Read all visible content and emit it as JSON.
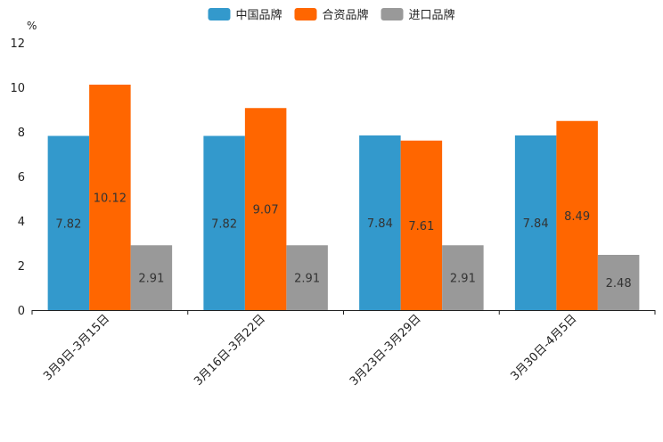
{
  "chart_data": {
    "type": "bar",
    "unit_label": "%",
    "categories": [
      "3月9日-3月15日",
      "3月16日-3月22日",
      "3月23日-3月29日",
      "3月30日-4月5日"
    ],
    "series": [
      {
        "name": "中国品牌",
        "color": "#3399cc",
        "values": [
          7.82,
          7.82,
          7.84,
          7.84
        ]
      },
      {
        "name": "合资品牌",
        "color": "#ff6600",
        "values": [
          10.12,
          9.07,
          7.61,
          8.49
        ]
      },
      {
        "name": "进口品牌",
        "color": "#999999",
        "values": [
          2.91,
          2.91,
          2.91,
          2.48
        ]
      }
    ],
    "ylim": [
      0,
      12
    ],
    "yticks": [
      0,
      2,
      4,
      6,
      8,
      10,
      12
    ],
    "legend_position": "top-center",
    "grid": false
  }
}
